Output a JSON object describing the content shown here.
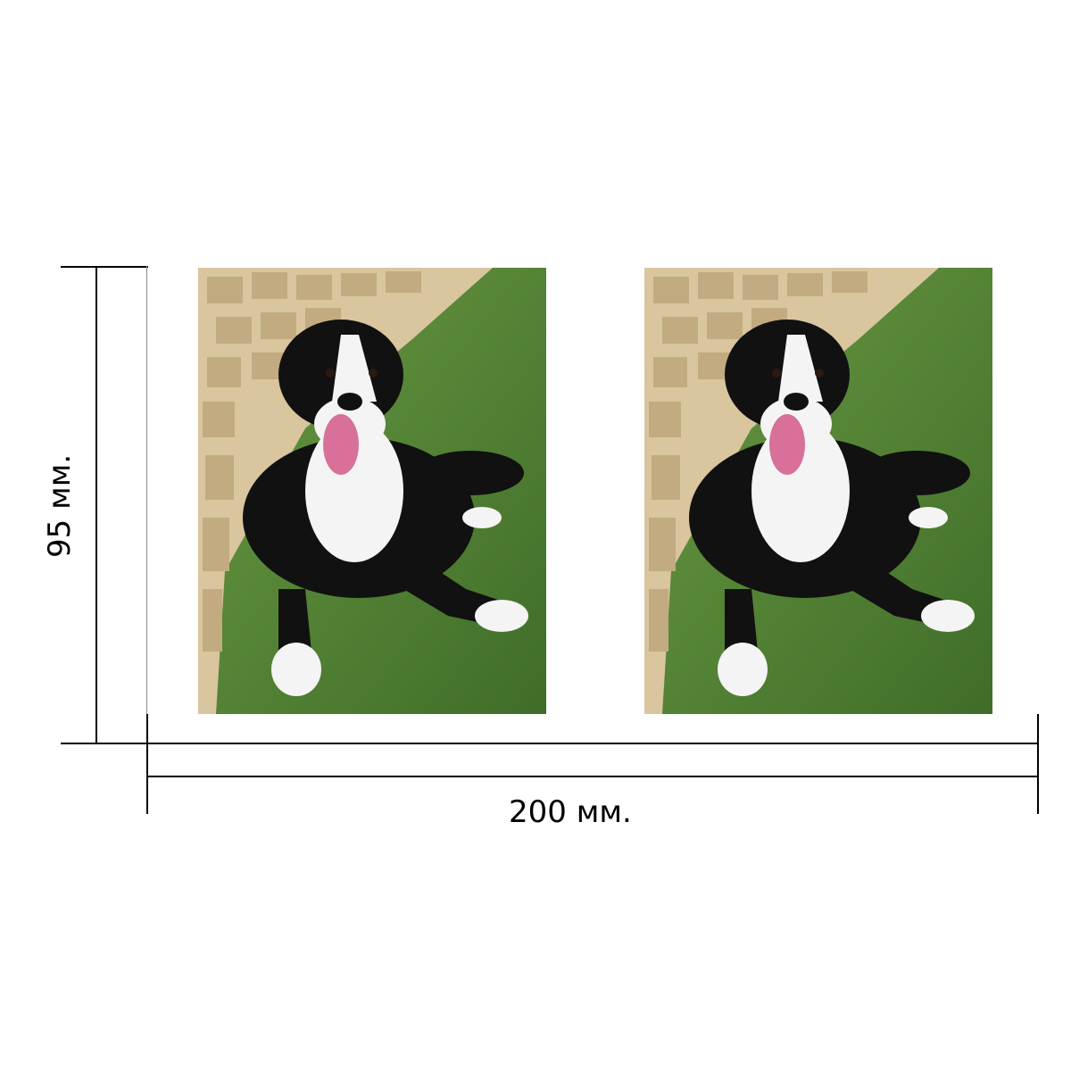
{
  "dimensions": {
    "height_label": "95 мм.",
    "width_label": "200 мм."
  },
  "photos": [
    {
      "name": "left-photo"
    },
    {
      "name": "right-photo"
    }
  ],
  "colors": {
    "grass": "#4a7a2e",
    "wall": "#d8c29a",
    "dog_black": "#111111",
    "dog_white": "#f4f4f4",
    "tongue": "#d8709a"
  }
}
